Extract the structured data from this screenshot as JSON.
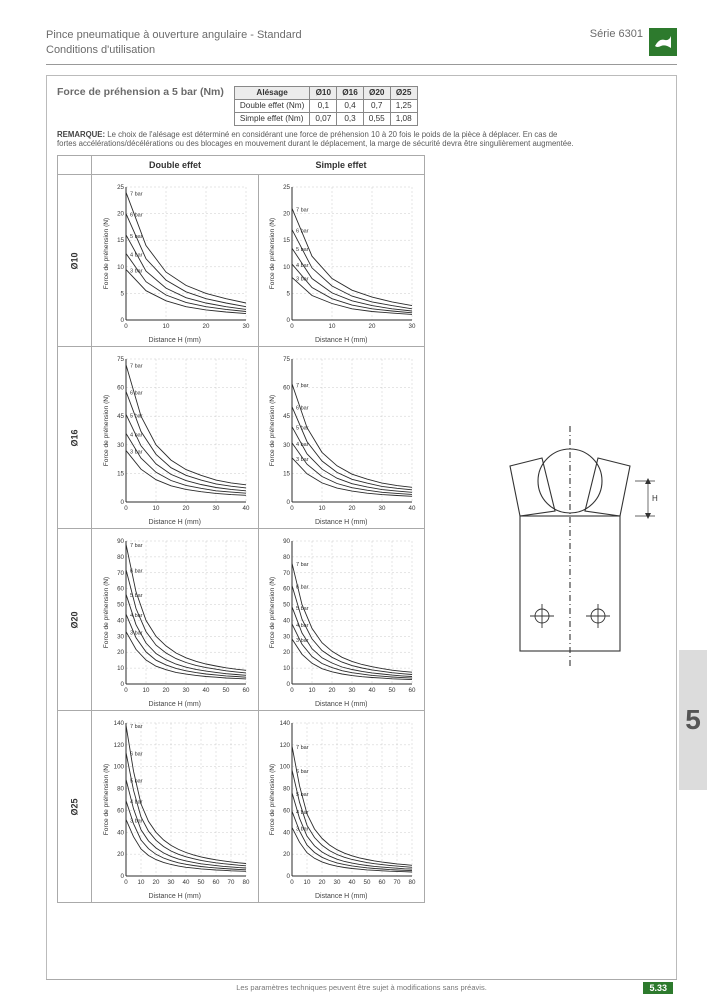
{
  "header": {
    "title_line1": "Pince pneumatique à ouverture angulaire - Standard",
    "title_line2": "Conditions d'utilisation",
    "series": "Série 6301"
  },
  "logo_color": "#2d7a2d",
  "section_title": "Force de préhension a 5 bar (Nm)",
  "bore_table": {
    "header": [
      "Alésage",
      "Ø10",
      "Ø16",
      "Ø20",
      "Ø25"
    ],
    "rows": [
      [
        "Double effet (Nm)",
        "0,1",
        "0,4",
        "0,7",
        "1,25"
      ],
      [
        "Simple effet (Nm)",
        "0,07",
        "0,3",
        "0,55",
        "1,08"
      ]
    ]
  },
  "remark_label": "REMARQUE:",
  "remark_text": "Le choix de l'alésage est déterminé en considérant une force de préhension 10 à 20 fois le poids de la pièce à déplacer. En cas de fortes accélérations/décélérations ou des blocages en mouvement durant le déplacement, la marge de sécurité devra être singulièrement augmentée.",
  "columns": {
    "left": "Double effet",
    "right": "Simple effet"
  },
  "axis": {
    "y": "Force de préhension (N)",
    "x": "Distance H (mm)"
  },
  "pressure_labels": [
    "7 bar",
    "6 bar",
    "5 bar",
    "4 bar",
    "3 bar"
  ],
  "rows": [
    {
      "label": "Ø10",
      "ylim": [
        0,
        25
      ],
      "ytick": 5,
      "xlim": [
        0,
        30
      ],
      "xtick": 10,
      "double_curves": [
        [
          24,
          14,
          9,
          6.5,
          5,
          4,
          3.2
        ],
        [
          20,
          11.5,
          7.5,
          5.3,
          4,
          3.2,
          2.5
        ],
        [
          16,
          9.2,
          6,
          4.2,
          3.2,
          2.5,
          2
        ],
        [
          12.5,
          7.2,
          4.7,
          3.3,
          2.5,
          2,
          1.6
        ],
        [
          9.5,
          5.5,
          3.6,
          2.5,
          1.9,
          1.5,
          1.2
        ]
      ],
      "simple_curves": [
        [
          21,
          12,
          7.8,
          5.6,
          4.3,
          3.4,
          2.7
        ],
        [
          17,
          9.8,
          6.4,
          4.5,
          3.4,
          2.7,
          2.1
        ],
        [
          13.5,
          7.8,
          5.1,
          3.6,
          2.7,
          2.1,
          1.7
        ],
        [
          10.5,
          6.1,
          4,
          2.8,
          2.1,
          1.7,
          1.35
        ],
        [
          8,
          4.6,
          3.1,
          2.1,
          1.6,
          1.3,
          1.05
        ]
      ]
    },
    {
      "label": "Ø16",
      "ylim": [
        0,
        75
      ],
      "ytick": 15,
      "xlim": [
        0,
        40
      ],
      "xtick": 10,
      "double_curves": [
        [
          72,
          45,
          30,
          22,
          17,
          14,
          11.5,
          10,
          9
        ],
        [
          58,
          37,
          25,
          18,
          14,
          11.5,
          9.5,
          8.3,
          7.4
        ],
        [
          46,
          29.5,
          20,
          14.5,
          11.2,
          9.2,
          7.6,
          6.6,
          5.9
        ],
        [
          36,
          23,
          15.6,
          11.3,
          8.7,
          7.2,
          5.9,
          5.2,
          4.6
        ],
        [
          27,
          17.2,
          11.7,
          8.5,
          6.6,
          5.4,
          4.5,
          3.9,
          3.5
        ]
      ],
      "simple_curves": [
        [
          62,
          39,
          26,
          19,
          14.6,
          12,
          9.9,
          8.6,
          7.7
        ],
        [
          50,
          31.7,
          21.5,
          15.5,
          11.9,
          9.9,
          8.2,
          7.2,
          6.4
        ],
        [
          39.5,
          25.3,
          17.2,
          12.5,
          9.6,
          7.9,
          6.5,
          5.7,
          5.1
        ],
        [
          31,
          19.8,
          13.4,
          9.7,
          7.5,
          6.2,
          5.1,
          4.5,
          4
        ],
        [
          23.2,
          14.8,
          10,
          7.3,
          5.7,
          4.6,
          3.9,
          3.4,
          3
        ]
      ]
    },
    {
      "label": "Ø20",
      "ylim": [
        0,
        90
      ],
      "ytick": 10,
      "xlim": [
        0,
        60
      ],
      "xtick": 10,
      "double_curves": [
        [
          88,
          58,
          40,
          30,
          24,
          19.5,
          16.5,
          14.3,
          12.6,
          11.3,
          10.2,
          9.3,
          8.6
        ],
        [
          72,
          47.5,
          33,
          24.5,
          19.5,
          16,
          13.5,
          11.7,
          10.3,
          9.3,
          8.3,
          7.6,
          7
        ],
        [
          56.5,
          37.3,
          25.8,
          19.2,
          15.3,
          12.5,
          10.6,
          9.2,
          8.1,
          7.3,
          6.5,
          6,
          5.5
        ],
        [
          44,
          29.1,
          20.2,
          15,
          12,
          9.8,
          8.3,
          7.2,
          6.3,
          5.7,
          5.1,
          4.7,
          4.3
        ],
        [
          33,
          21.8,
          15.1,
          11.2,
          9,
          7.3,
          6.2,
          5.4,
          4.7,
          4.3,
          3.8,
          3.5,
          3.2
        ]
      ],
      "simple_curves": [
        [
          76,
          50,
          35,
          26,
          20.6,
          16.8,
          14.2,
          12.3,
          10.9,
          9.7,
          8.7,
          8,
          7.4
        ],
        [
          62,
          40.8,
          28.4,
          21.1,
          16.8,
          13.8,
          11.6,
          10.1,
          8.9,
          8,
          7.1,
          6.5,
          6
        ],
        [
          48.6,
          32.1,
          22.2,
          16.5,
          13.2,
          10.7,
          9.1,
          7.9,
          7,
          6.3,
          5.6,
          5.1,
          4.7
        ],
        [
          37.8,
          25,
          17.3,
          12.9,
          10.3,
          8.4,
          7.1,
          6.2,
          5.4,
          4.9,
          4.4,
          4,
          3.7
        ],
        [
          28.3,
          18.7,
          13,
          9.6,
          7.7,
          6.3,
          5.3,
          4.6,
          4.1,
          3.7,
          3.3,
          3,
          2.8
        ]
      ]
    },
    {
      "label": "Ø25",
      "ylim": [
        0,
        140
      ],
      "ytick": 20,
      "xlim": [
        0,
        80
      ],
      "xtick": 10,
      "double_curves": [
        [
          138,
          96,
          66,
          50,
          40,
          33,
          28,
          24.3,
          21.5,
          19.3,
          17.5,
          16,
          14.8,
          13.8,
          12.9,
          12.1,
          11.4
        ],
        [
          113,
          78.5,
          54,
          41,
          32.7,
          27,
          22.9,
          19.9,
          17.6,
          15.8,
          14.3,
          13.1,
          12.1,
          11.3,
          10.6,
          9.9,
          9.3
        ],
        [
          88.5,
          61.5,
          42.3,
          32.1,
          25.6,
          21.1,
          17.9,
          15.5,
          13.8,
          12.4,
          11.2,
          10.3,
          9.5,
          8.8,
          8.3,
          7.7,
          7.3
        ],
        [
          69,
          47.9,
          32.9,
          25,
          19.9,
          16.5,
          14,
          12.1,
          10.7,
          9.6,
          8.7,
          8,
          7.4,
          6.9,
          6.4,
          6,
          5.7
        ],
        [
          51.8,
          36,
          24.7,
          18.8,
          15,
          12.4,
          10.5,
          9.1,
          8,
          7.2,
          6.5,
          6,
          5.5,
          5.2,
          4.8,
          4.5,
          4.3
        ]
      ],
      "simple_curves": [
        [
          119,
          82.6,
          56.8,
          43,
          34.4,
          28.4,
          24.1,
          20.9,
          18.5,
          16.6,
          15.1,
          13.8,
          12.7,
          11.9,
          11.1,
          10.4,
          9.8
        ],
        [
          97.2,
          67.5,
          46.4,
          35.2,
          28.1,
          23.2,
          19.7,
          17.1,
          15.1,
          13.6,
          12.3,
          11.3,
          10.4,
          9.7,
          9.1,
          8.5,
          8
        ],
        [
          76.1,
          52.9,
          36.4,
          27.6,
          22,
          18.2,
          15.4,
          13.3,
          11.8,
          10.6,
          9.6,
          8.8,
          8.1,
          7.6,
          7.1,
          6.6,
          6.3
        ],
        [
          59.3,
          41.2,
          28.3,
          21.5,
          17.1,
          14.2,
          12,
          10.4,
          9.2,
          8.3,
          7.5,
          6.9,
          6.4,
          5.9,
          5.5,
          5.2,
          4.9
        ],
        [
          44.5,
          30.9,
          21.3,
          16.2,
          12.9,
          10.6,
          9,
          7.8,
          6.9,
          6.2,
          5.6,
          5.2,
          4.8,
          4.4,
          4.2,
          3.9,
          3.7
        ]
      ]
    }
  ],
  "chart_style": {
    "line_color": "#2b2b2b",
    "line_width": 0.9,
    "grid_color": "#b5b5b5",
    "grid_width": 0.35,
    "grid_dash": "2,2",
    "axis_color": "#2b2b2b",
    "tick_fontsize": 6.2,
    "label_fontsize": 6.6
  },
  "section_tab": "5",
  "footer": "Les paramètres techniques peuvent être sujet à modifications sans préavis.",
  "page_number": "5.33"
}
